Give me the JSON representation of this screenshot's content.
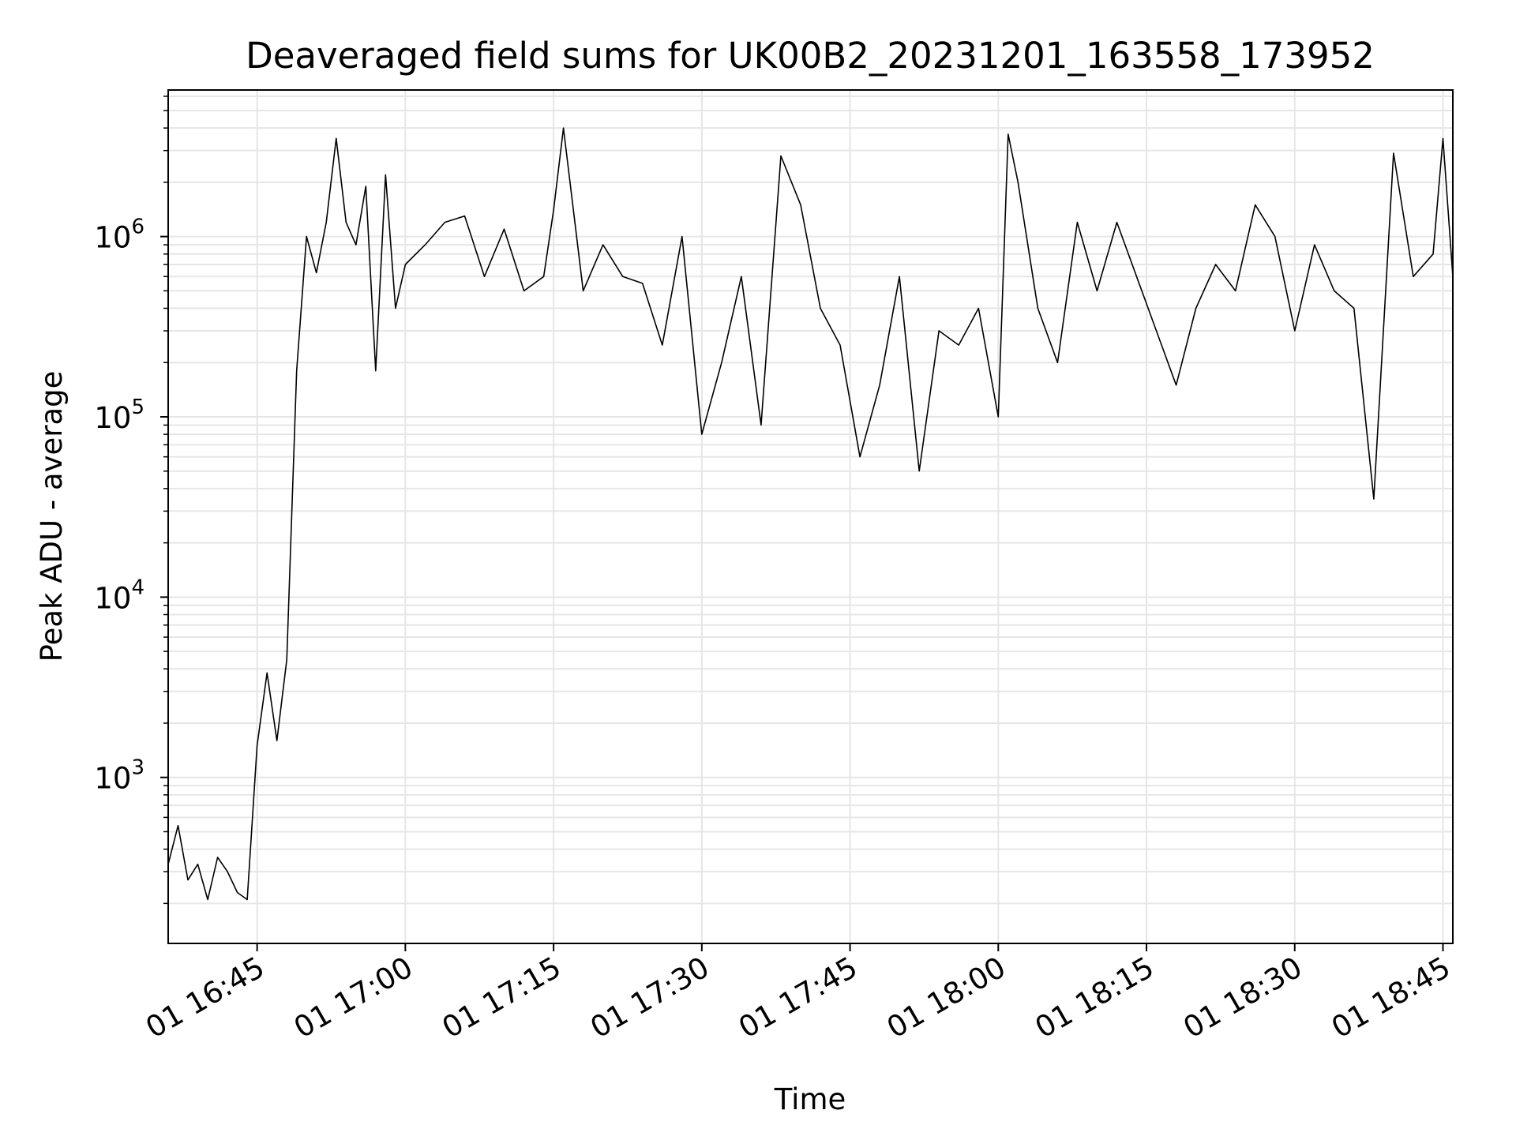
{
  "chart_data": {
    "type": "line",
    "title": "Deaveraged field sums for UK00B2_20231201_163558_173952",
    "xlabel": "Time",
    "ylabel": "Peak ADU - average",
    "y_scale": "log",
    "ylim": [
      120,
      6500000
    ],
    "xlim": [
      "2023-12-01 16:36",
      "2023-12-01 18:46"
    ],
    "grid": true,
    "line_color": "#000000",
    "x_ticks": [
      {
        "t": "2023-12-01 16:45",
        "label": "01 16:45"
      },
      {
        "t": "2023-12-01 17:00",
        "label": "01 17:00"
      },
      {
        "t": "2023-12-01 17:15",
        "label": "01 17:15"
      },
      {
        "t": "2023-12-01 17:30",
        "label": "01 17:30"
      },
      {
        "t": "2023-12-01 17:45",
        "label": "01 17:45"
      },
      {
        "t": "2023-12-01 18:00",
        "label": "01 18:00"
      },
      {
        "t": "2023-12-01 18:15",
        "label": "01 18:15"
      },
      {
        "t": "2023-12-01 18:30",
        "label": "01 18:30"
      },
      {
        "t": "2023-12-01 18:45",
        "label": "01 18:45"
      }
    ],
    "y_ticks": [
      {
        "value": 1000,
        "base": "10",
        "exp": "3"
      },
      {
        "value": 10000,
        "base": "10",
        "exp": "4"
      },
      {
        "value": 100000,
        "base": "10",
        "exp": "5"
      },
      {
        "value": 1000000,
        "base": "10",
        "exp": "6"
      }
    ],
    "series": [
      {
        "x": [
          "2023-12-01 16:36",
          "2023-12-01 16:37",
          "2023-12-01 16:38",
          "2023-12-01 16:39",
          "2023-12-01 16:40",
          "2023-12-01 16:41",
          "2023-12-01 16:42",
          "2023-12-01 16:43",
          "2023-12-01 16:44",
          "2023-12-01 16:45",
          "2023-12-01 16:46",
          "2023-12-01 16:47",
          "2023-12-01 16:48",
          "2023-12-01 16:49",
          "2023-12-01 16:50",
          "2023-12-01 16:51",
          "2023-12-01 16:52",
          "2023-12-01 16:53",
          "2023-12-01 16:54",
          "2023-12-01 16:55",
          "2023-12-01 16:56",
          "2023-12-01 16:57",
          "2023-12-01 16:58",
          "2023-12-01 16:59",
          "2023-12-01 17:00",
          "2023-12-01 17:02",
          "2023-12-01 17:04",
          "2023-12-01 17:06",
          "2023-12-01 17:08",
          "2023-12-01 17:10",
          "2023-12-01 17:12",
          "2023-12-01 17:14",
          "2023-12-01 17:15",
          "2023-12-01 17:16",
          "2023-12-01 17:18",
          "2023-12-01 17:20",
          "2023-12-01 17:22",
          "2023-12-01 17:24",
          "2023-12-01 17:26",
          "2023-12-01 17:28",
          "2023-12-01 17:30",
          "2023-12-01 17:32",
          "2023-12-01 17:34",
          "2023-12-01 17:36",
          "2023-12-01 17:38",
          "2023-12-01 17:40",
          "2023-12-01 17:42",
          "2023-12-01 17:44",
          "2023-12-01 17:46",
          "2023-12-01 17:48",
          "2023-12-01 17:50",
          "2023-12-01 17:52",
          "2023-12-01 17:54",
          "2023-12-01 17:56",
          "2023-12-01 17:58",
          "2023-12-01 18:00",
          "2023-12-01 18:01",
          "2023-12-01 18:02",
          "2023-12-01 18:04",
          "2023-12-01 18:06",
          "2023-12-01 18:08",
          "2023-12-01 18:10",
          "2023-12-01 18:12",
          "2023-12-01 18:14",
          "2023-12-01 18:16",
          "2023-12-01 18:18",
          "2023-12-01 18:20",
          "2023-12-01 18:22",
          "2023-12-01 18:24",
          "2023-12-01 18:26",
          "2023-12-01 18:28",
          "2023-12-01 18:30",
          "2023-12-01 18:32",
          "2023-12-01 18:34",
          "2023-12-01 18:36",
          "2023-12-01 18:38",
          "2023-12-01 18:40",
          "2023-12-01 18:42",
          "2023-12-01 18:44",
          "2023-12-01 18:45",
          "2023-12-01 18:46"
        ],
        "y": [
          330,
          540,
          270,
          330,
          210,
          360,
          300,
          230,
          210,
          1500,
          3800,
          1600,
          4500,
          180000,
          1000000,
          630000,
          1200000,
          3500000,
          1200000,
          900000,
          1900000,
          180000,
          2200000,
          400000,
          700000,
          900000,
          1200000,
          1300000,
          600000,
          1100000,
          500000,
          600000,
          1400000,
          4000000,
          500000,
          900000,
          600000,
          550000,
          250000,
          1000000,
          80000,
          200000,
          600000,
          90000,
          2800000,
          1500000,
          400000,
          250000,
          60000,
          150000,
          600000,
          50000,
          300000,
          250000,
          400000,
          100000,
          3700000,
          2000000,
          400000,
          200000,
          1200000,
          500000,
          1200000,
          600000,
          300000,
          150000,
          400000,
          700000,
          500000,
          1500000,
          1000000,
          300000,
          900000,
          500000,
          400000,
          35000,
          2900000,
          600000,
          800000,
          3500000,
          600000
        ]
      }
    ]
  }
}
